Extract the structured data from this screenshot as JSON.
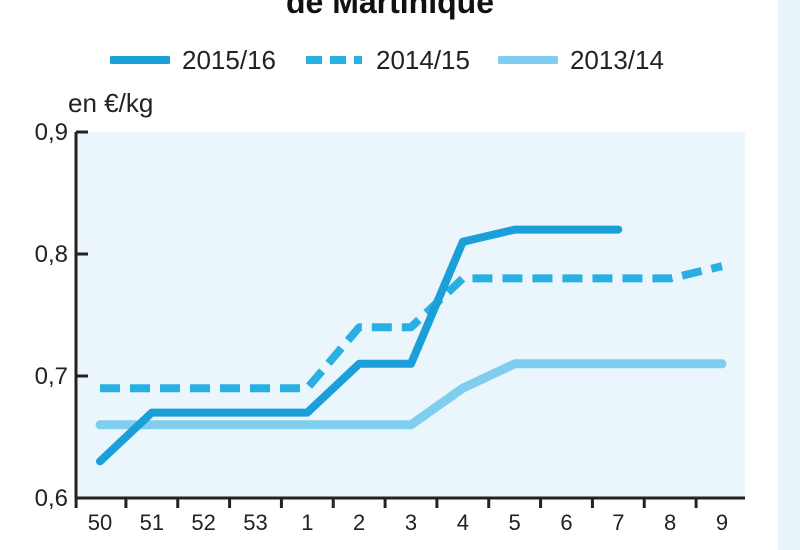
{
  "chart_data": {
    "type": "line",
    "title": "de Martinique",
    "ylabel": "en €/kg",
    "xlabel": "",
    "categories": [
      "50",
      "51",
      "52",
      "53",
      "1",
      "2",
      "3",
      "4",
      "5",
      "6",
      "7",
      "8",
      "9"
    ],
    "yticks": [
      "0,6",
      "0,7",
      "0,8",
      "0,9"
    ],
    "ylim": [
      0.6,
      0.9
    ],
    "grid": false,
    "legend_position": "top",
    "series": [
      {
        "name": "2015/16",
        "style": "solid",
        "color": "#1a9fd8",
        "values": [
          0.63,
          0.67,
          0.67,
          0.67,
          0.67,
          0.71,
          0.71,
          0.81,
          0.82,
          0.82,
          0.82,
          null,
          null
        ]
      },
      {
        "name": "2014/15",
        "style": "dashed",
        "color": "#29b0e2",
        "values": [
          0.69,
          0.69,
          0.69,
          0.69,
          0.69,
          0.74,
          0.74,
          0.78,
          0.78,
          0.78,
          0.78,
          0.78,
          0.79
        ]
      },
      {
        "name": "2013/14",
        "style": "light",
        "color": "#7fcdef",
        "values": [
          0.66,
          0.66,
          0.66,
          0.66,
          0.66,
          0.66,
          0.66,
          0.69,
          0.71,
          0.71,
          0.71,
          0.71,
          0.71
        ]
      }
    ]
  },
  "colors": {
    "plot_background": "#eaf6fc",
    "axis": "#222222"
  }
}
